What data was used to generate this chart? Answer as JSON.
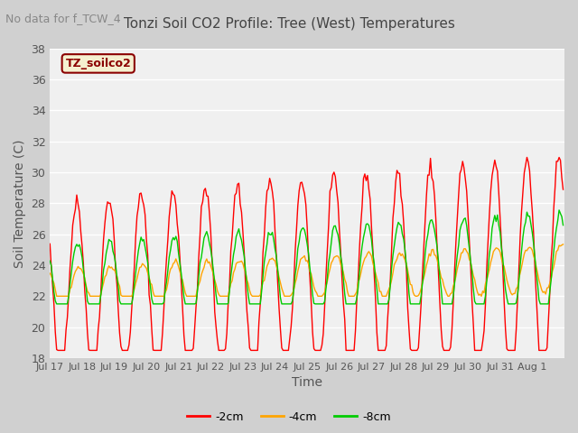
{
  "title": "Tonzi Soil CO2 Profile: Tree (West) Temperatures",
  "subtitle": "No data for f_TCW_4",
  "xlabel": "Time",
  "ylabel": "Soil Temperature (C)",
  "ylim": [
    18,
    38
  ],
  "yticks": [
    18,
    20,
    22,
    24,
    26,
    28,
    30,
    32,
    34,
    36,
    38
  ],
  "xtick_labels": [
    "Jul 17",
    "Jul 18",
    "Jul 19",
    "Jul 20",
    "Jul 21",
    "Jul 22",
    "Jul 23",
    "Jul 24",
    "Jul 25",
    "Jul 26",
    "Jul 27",
    "Jul 28",
    "Jul 29",
    "Jul 30",
    "Jul 31",
    "Aug 1"
  ],
  "legend_label_box": "TZ_soilco2",
  "series": {
    "2cm": {
      "color": "#ff0000",
      "label": "-2cm"
    },
    "4cm": {
      "color": "#ffa500",
      "label": "-4cm"
    },
    "8cm": {
      "color": "#00cc00",
      "label": "-8cm"
    }
  },
  "plot_bg": "#f0f0f0",
  "grid_color": "#ffffff",
  "n_days": 16,
  "n_per_day": 24
}
